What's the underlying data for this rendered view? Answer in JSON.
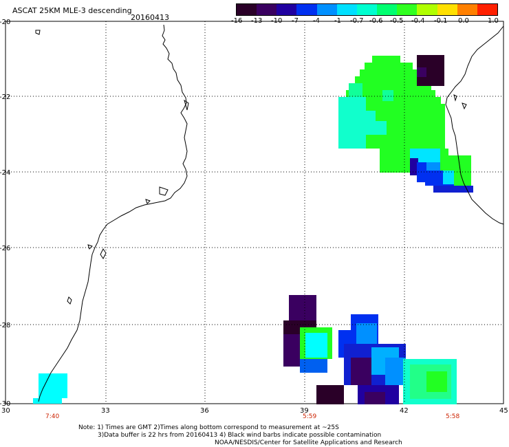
{
  "title": "ASCAT 25KM MLE-3 descending",
  "date": "20160413",
  "colorbar": {
    "labels": [
      "-16",
      "-13",
      "-10",
      "-7",
      "-4",
      "-1",
      "-0.7",
      "-0.6",
      "-0.5",
      "-0.4",
      "-0.1",
      "0.0",
      "1.0"
    ],
    "colors": [
      "#2a0028",
      "#3a0060",
      "#2000a0",
      "#0030f0",
      "#0090ff",
      "#00e0ff",
      "#00ffd0",
      "#00ff70",
      "#30ff20",
      "#b0ff00",
      "#ffe000",
      "#ff8000",
      "#ff2000"
    ]
  },
  "axes": {
    "lon_labels": [
      "30",
      "33",
      "36",
      "39",
      "42",
      "45"
    ],
    "lat_labels": [
      "-20",
      "-22",
      "-24",
      "-26",
      "-28",
      "-30"
    ]
  },
  "times": [
    "7:40",
    "5:59",
    "5:58"
  ],
  "notes": {
    "line1": "Note: 1) Times are GMT 2)Times along bottom correspond to measurement at ~25S",
    "line2": "3)Data buffer is 22 hrs from 20160413 4) Black wind barbs indicate possible contamination",
    "line3": "NOAA/NESDIS/Center for Satellite Applications and Research"
  }
}
